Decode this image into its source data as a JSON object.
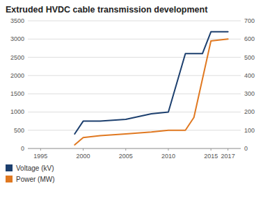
{
  "chart_data": {
    "type": "line",
    "title": "Extruded HVDC cable transmission development",
    "series": [
      {
        "name": "Voltage (kV)",
        "color": "#1c3f6e",
        "x": [
          1999,
          2000,
          2002,
          2005,
          2008,
          2010,
          2012,
          2014,
          2015,
          2017
        ],
        "values": [
          400,
          750,
          750,
          800,
          950,
          1000,
          2600,
          2600,
          3200,
          3200
        ]
      },
      {
        "name": "Power (MW)",
        "color": "#e07820",
        "axis": "y2",
        "x": [
          1999,
          2000,
          2002,
          2005,
          2008,
          2010,
          2012,
          2013,
          2015,
          2017
        ],
        "values": [
          20,
          60,
          70,
          80,
          90,
          100,
          100,
          170,
          590,
          600
        ]
      }
    ],
    "xlim": [
      1993.5,
      2018.5
    ],
    "xticks": [
      1995,
      2000,
      2005,
      2010,
      2015,
      2017
    ],
    "ylim": [
      0,
      3500
    ],
    "yticks": [
      0,
      500,
      1000,
      1500,
      2000,
      2500,
      3000,
      3500
    ],
    "y2lim": [
      0,
      700
    ],
    "y2ticks": [
      0,
      100,
      200,
      300,
      400,
      500,
      600,
      700
    ],
    "grid": true,
    "legend": "bottom"
  }
}
